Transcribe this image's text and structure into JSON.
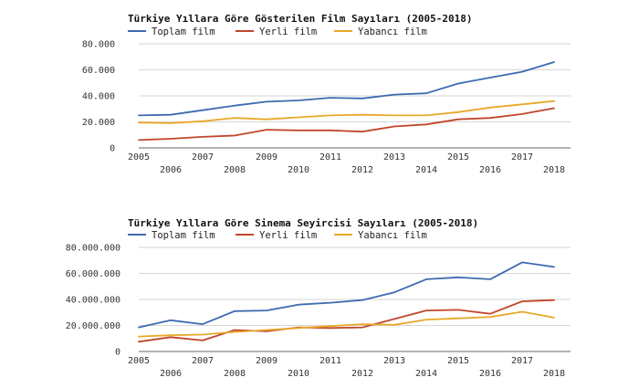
{
  "chart_data": [
    {
      "type": "line",
      "title": "Türkiye Yıllara Göre Gösterilen Film Sayıları (2005-2018)",
      "xlabel": "",
      "ylabel": "",
      "x": [
        "2005",
        "2006",
        "2007",
        "2008",
        "2009",
        "2010",
        "2011",
        "2012",
        "2013",
        "2014",
        "2015",
        "2016",
        "2017",
        "2018"
      ],
      "ylim": [
        0,
        80000
      ],
      "yticks": [
        "0",
        "20.000",
        "40.000",
        "60.000",
        "80.000"
      ],
      "grid": true,
      "legend": "top-left",
      "series": [
        {
          "name": "Toplam film",
          "color": "#3d6bb0",
          "values": [
            25000,
            25500,
            29000,
            32500,
            35500,
            36500,
            38500,
            38000,
            41000,
            42000,
            49500,
            54000,
            58500,
            66000
          ]
        },
        {
          "name": "Yerli film",
          "color": "#c0462a",
          "values": [
            6000,
            7000,
            8500,
            9500,
            14000,
            13500,
            13500,
            12500,
            16500,
            18000,
            22000,
            23000,
            26000,
            30500
          ]
        },
        {
          "name": "Yabancı film",
          "color": "#e8a82a",
          "values": [
            19500,
            19000,
            20500,
            23000,
            22000,
            23500,
            25000,
            25500,
            25000,
            25000,
            27500,
            31000,
            33500,
            36000
          ]
        }
      ]
    },
    {
      "type": "line",
      "title": "Türkiye Yıllara Göre Sinema Seyircisi Sayıları (2005-2018)",
      "xlabel": "",
      "ylabel": "",
      "x": [
        "2005",
        "2006",
        "2007",
        "2008",
        "2009",
        "2010",
        "2011",
        "2012",
        "2013",
        "2014",
        "2015",
        "2016",
        "2017",
        "2018"
      ],
      "ylim": [
        0,
        80000000
      ],
      "yticks": [
        "0",
        "20.000.000",
        "40.000.000",
        "60.000.000",
        "80.000.000"
      ],
      "grid": true,
      "legend": "top-left",
      "series": [
        {
          "name": "Toplam film",
          "color": "#3d6bb0",
          "values": [
            18500000,
            24000000,
            21000000,
            31000000,
            31500000,
            36000000,
            37500000,
            39500000,
            45500000,
            55500000,
            57000000,
            55500000,
            68500000,
            65000000
          ]
        },
        {
          "name": "Yerli film",
          "color": "#c0462a",
          "values": [
            7500000,
            11000000,
            8500000,
            16500000,
            15500000,
            18500000,
            18000000,
            18500000,
            25000000,
            31500000,
            32000000,
            29000000,
            38500000,
            39500000
          ]
        },
        {
          "name": "Yabancı film",
          "color": "#e8a82a",
          "values": [
            11500000,
            12500000,
            13000000,
            15000000,
            16500000,
            18000000,
            19500000,
            21000000,
            20500000,
            24500000,
            25500000,
            26500000,
            30500000,
            26000000
          ]
        }
      ]
    }
  ]
}
